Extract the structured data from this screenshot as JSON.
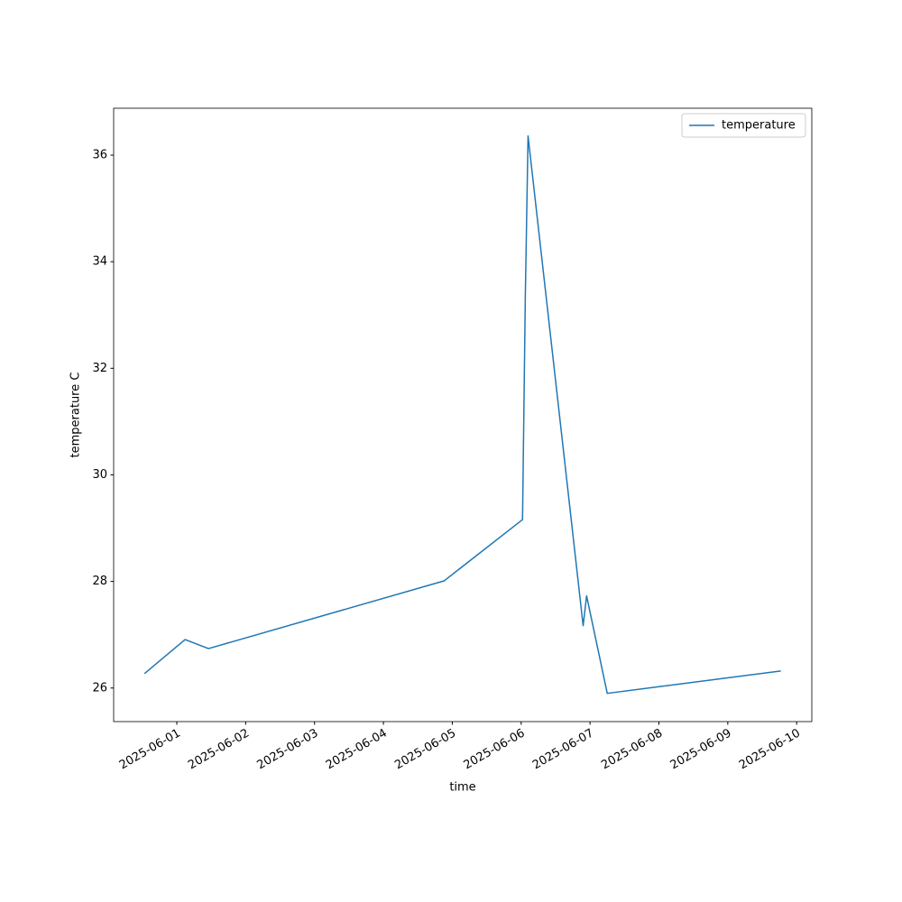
{
  "chart_data": {
    "type": "line",
    "xlabel": "time",
    "ylabel": "temperature C",
    "x": [
      0.53,
      1.12,
      1.46,
      4.88,
      6.02,
      6.06,
      6.1,
      6.9,
      6.95,
      7.25,
      9.77
    ],
    "series": [
      {
        "name": "temperature",
        "color": "#1f77b4",
        "values": [
          26.27,
          26.91,
          26.74,
          28.01,
          29.16,
          33.33,
          36.36,
          27.17,
          27.73,
          25.9,
          26.32
        ]
      }
    ],
    "xlim": [
      0.083,
      10.22
    ],
    "ylim": [
      25.37,
      36.88
    ],
    "xticks": [
      {
        "value": 1,
        "label": "2025-06-01"
      },
      {
        "value": 2,
        "label": "2025-06-02"
      },
      {
        "value": 3,
        "label": "2025-06-03"
      },
      {
        "value": 4,
        "label": "2025-06-04"
      },
      {
        "value": 5,
        "label": "2025-06-05"
      },
      {
        "value": 6,
        "label": "2025-06-06"
      },
      {
        "value": 7,
        "label": "2025-06-07"
      },
      {
        "value": 8,
        "label": "2025-06-08"
      },
      {
        "value": 9,
        "label": "2025-06-09"
      },
      {
        "value": 10,
        "label": "2025-06-10"
      }
    ],
    "yticks": [
      26,
      28,
      30,
      32,
      34,
      36
    ],
    "grid": false,
    "legend": "upper right"
  }
}
